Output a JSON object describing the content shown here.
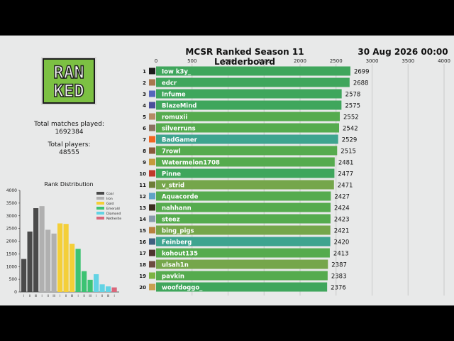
{
  "title": "MCSR Ranked Season 11 Leaderboard",
  "date": "30 Aug 2026 00:00",
  "logo_text": "RANKED",
  "stats": {
    "matches_label": "Total matches played:",
    "matches_value": "1692384",
    "players_label": "Total players:",
    "players_value": "48555"
  },
  "chart_data": [
    {
      "type": "bar",
      "orientation": "horizontal",
      "title": "MCSR Ranked Season 11 Leaderboard",
      "xlim": [
        0,
        4000
      ],
      "xticks": [
        0,
        500,
        1000,
        1500,
        2000,
        2500,
        3000,
        3500,
        4000
      ],
      "grid": true,
      "ranks": [
        1,
        2,
        3,
        4,
        5,
        6,
        7,
        8,
        9,
        10,
        11,
        12,
        13,
        14,
        15,
        16,
        17,
        18,
        19,
        20
      ],
      "categories": [
        "Iow k3y_",
        "edcr",
        "Infume",
        "BlazeMind",
        "romuxii",
        "silverruns",
        "BadGamer",
        "7rowl",
        "Watermelon1708",
        "Pinne",
        "v_strid",
        "Aquacorde",
        "nahhann",
        "steez",
        "bing_pigs",
        "Feinberg",
        "kohout135",
        "ulsah1n",
        "pavkin",
        "woofdoggo_"
      ],
      "values": [
        2699,
        2688,
        2578,
        2575,
        2552,
        2542,
        2529,
        2515,
        2481,
        2477,
        2471,
        2427,
        2424,
        2423,
        2421,
        2420,
        2413,
        2387,
        2383,
        2376
      ],
      "bar_colors": [
        "#3fa65c",
        "#3fa65c",
        "#3fa65c",
        "#3fa65c",
        "#55ab4e",
        "#55ab4e",
        "#3ea48f",
        "#55ab4e",
        "#55ab4e",
        "#3fa65c",
        "#75a64b",
        "#55ab4e",
        "#55ab4e",
        "#55ab4e",
        "#75a64b",
        "#3ea48f",
        "#55ab4e",
        "#75a64b",
        "#55ab4e",
        "#3fa65c"
      ],
      "avatar_colors": [
        "#1c1c1c",
        "#a8774e",
        "#5566bb",
        "#4a4f9a",
        "#b58b65",
        "#8a7160",
        "#f26522",
        "#8b5a3c",
        "#c49a3c",
        "#c0392b",
        "#6e7d38",
        "#5fa3c6",
        "#3a2d1f",
        "#8899aa",
        "#b88040",
        "#3f5f7f",
        "#4e342e",
        "#6d4c41",
        "#7cb342",
        "#c8a050"
      ]
    },
    {
      "type": "bar",
      "title": "Rank Distribution",
      "ylim": [
        0,
        4000
      ],
      "yticks": [
        0,
        500,
        1000,
        1500,
        2000,
        2500,
        3000,
        3500,
        4000
      ],
      "categories": [
        "I",
        "II",
        "III",
        "I",
        "II",
        "III",
        "I",
        "II",
        "III",
        "I",
        "II",
        "III",
        "I",
        "II",
        "III",
        "I"
      ],
      "values": [
        1300,
        2380,
        3300,
        3380,
        2450,
        2300,
        2700,
        2680,
        1900,
        1700,
        820,
        480,
        700,
        300,
        220,
        180
      ],
      "colors": [
        "#4a4a4a",
        "#4a4a4a",
        "#4a4a4a",
        "#b0b0b0",
        "#b0b0b0",
        "#b0b0b0",
        "#f4cf38",
        "#f4cf38",
        "#f4cf38",
        "#3dc373",
        "#3dc373",
        "#3dc373",
        "#62d3e4",
        "#62d3e4",
        "#62d3e4",
        "#d9677b"
      ],
      "legend": [
        {
          "name": "Coal",
          "color": "#4a4a4a"
        },
        {
          "name": "Iron",
          "color": "#b0b0b0"
        },
        {
          "name": "Gold",
          "color": "#f4cf38"
        },
        {
          "name": "Emerald",
          "color": "#3dc373"
        },
        {
          "name": "Diamond",
          "color": "#62d3e4"
        },
        {
          "name": "Netherite",
          "color": "#d9677b"
        }
      ],
      "legend_position": "top-right"
    }
  ]
}
